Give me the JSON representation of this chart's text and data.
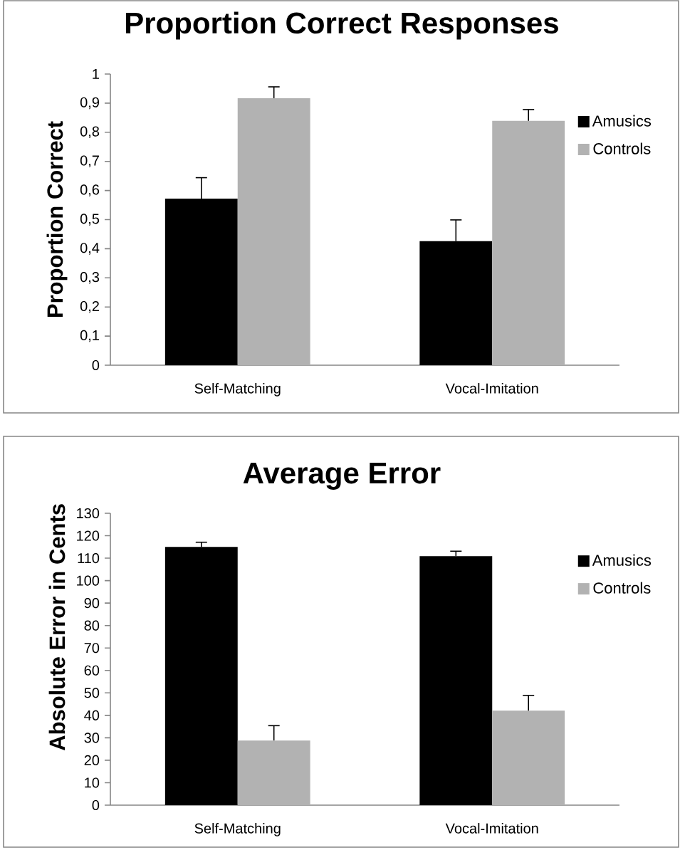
{
  "chart_data": [
    {
      "type": "bar",
      "title": "Proportion Correct Responses",
      "ylabel": "Proportion Correct",
      "categories": [
        "Self-Matching",
        "Vocal-Imitation"
      ],
      "series": [
        {
          "name": "Amusics",
          "color": "#000000",
          "values": [
            0.572,
            0.426
          ],
          "errors": [
            0.072,
            0.073
          ]
        },
        {
          "name": "Controls",
          "color": "#b2b2b2",
          "values": [
            0.917,
            0.839
          ],
          "errors": [
            0.039,
            0.039
          ]
        }
      ],
      "ylim": [
        0,
        1
      ],
      "yticks": [
        0,
        {
          "value": 0.1,
          "label": "0,1"
        },
        {
          "value": 0.2,
          "label": "0,2"
        },
        {
          "value": 0.3,
          "label": "0,3"
        },
        {
          "value": 0.4,
          "label": "0,4"
        },
        {
          "value": 0.5,
          "label": "0,5"
        },
        {
          "value": 0.6,
          "label": "0,6"
        },
        {
          "value": 0.7,
          "label": "0,7"
        },
        {
          "value": 0.8,
          "label": "0,8"
        },
        {
          "value": 0.9,
          "label": "0,9"
        },
        1
      ],
      "legend": "right"
    },
    {
      "type": "bar",
      "title": "Average Error",
      "ylabel": "Absolute Error in Cents",
      "categories": [
        "Self-Matching",
        "Vocal-Imitation"
      ],
      "series": [
        {
          "name": "Amusics",
          "color": "#000000",
          "values": [
            115,
            110.9
          ],
          "errors": [
            2.1,
            2.2
          ]
        },
        {
          "name": "Controls",
          "color": "#b2b2b2",
          "values": [
            28.8,
            42.1
          ],
          "errors": [
            6.6,
            6.8
          ]
        }
      ],
      "ylim": [
        0,
        130
      ],
      "yticks": [
        0,
        10,
        20,
        30,
        40,
        50,
        60,
        70,
        80,
        90,
        100,
        110,
        120,
        130
      ],
      "legend": "right"
    }
  ]
}
